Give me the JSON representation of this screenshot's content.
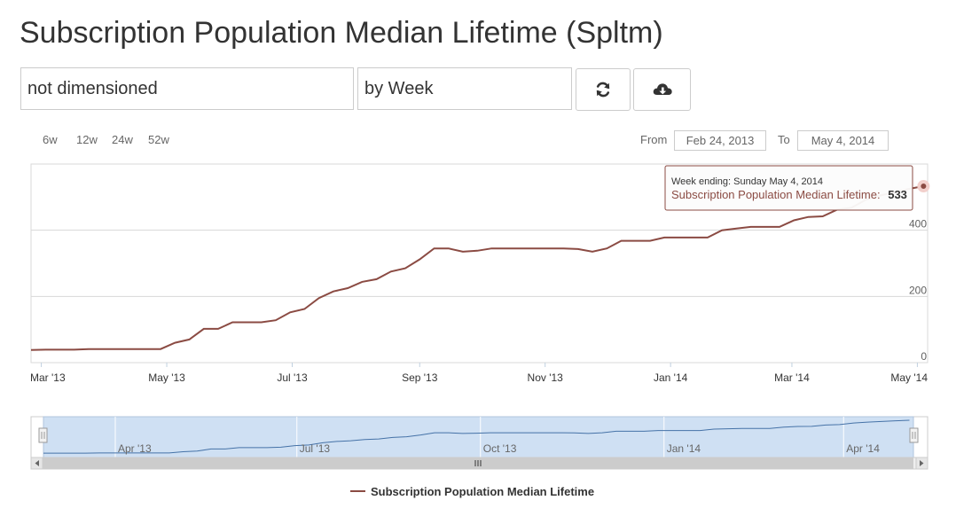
{
  "page": {
    "title": "Subscription Population Median Lifetime (Spltm)"
  },
  "controls": {
    "dimension_value": "not dimensioned",
    "period_value": "by Week",
    "refresh_icon": "refresh-icon",
    "download_icon": "cloud-download-icon"
  },
  "zoom": {
    "buttons": [
      "6w",
      "12w",
      "24w",
      "52w"
    ]
  },
  "range": {
    "from_label": "From",
    "from_value": "Feb 24, 2013",
    "to_label": "To",
    "to_value": "May 4, 2014"
  },
  "tooltip": {
    "header": "Week ending: Sunday May 4, 2014",
    "series_label": "Subscription Population Median Lifetime:",
    "value": "533"
  },
  "colors": {
    "series": "#8b4b43",
    "navigator_fill": "#cfe0f3",
    "navigator_line": "#4572a7"
  },
  "chart_data": {
    "type": "line",
    "title": "",
    "xlabel": "",
    "ylabel": "",
    "ylim": [
      0,
      600
    ],
    "y_ticks": [
      "0",
      "200",
      "400"
    ],
    "x_tick_labels": [
      "Mar '13",
      "May '13",
      "Jul '13",
      "Sep '13",
      "Nov '13",
      "Jan '14",
      "Mar '14",
      "May '14"
    ],
    "navigator_tick_labels": [
      "Apr '13",
      "Jul '13",
      "Oct '13",
      "Jan '14",
      "Apr '14"
    ],
    "legend": {
      "position": "bottom-center",
      "entries": [
        "Subscription Population Median Lifetime"
      ]
    },
    "grid": true,
    "series": [
      {
        "name": "Subscription Population Median Lifetime",
        "x": [
          "2013-02-24",
          "2013-03-03",
          "2013-03-10",
          "2013-03-17",
          "2013-03-24",
          "2013-03-31",
          "2013-04-07",
          "2013-04-14",
          "2013-04-21",
          "2013-04-28",
          "2013-05-05",
          "2013-05-12",
          "2013-05-19",
          "2013-05-26",
          "2013-06-02",
          "2013-06-09",
          "2013-06-16",
          "2013-06-23",
          "2013-06-30",
          "2013-07-07",
          "2013-07-14",
          "2013-07-21",
          "2013-07-28",
          "2013-08-04",
          "2013-08-11",
          "2013-08-18",
          "2013-08-25",
          "2013-09-01",
          "2013-09-08",
          "2013-09-15",
          "2013-09-22",
          "2013-09-29",
          "2013-10-06",
          "2013-10-13",
          "2013-10-20",
          "2013-10-27",
          "2013-11-03",
          "2013-11-10",
          "2013-11-17",
          "2013-11-24",
          "2013-12-01",
          "2013-12-08",
          "2013-12-15",
          "2013-12-22",
          "2013-12-29",
          "2014-01-05",
          "2014-01-12",
          "2014-01-19",
          "2014-01-26",
          "2014-02-02",
          "2014-02-09",
          "2014-02-16",
          "2014-02-23",
          "2014-03-02",
          "2014-03-09",
          "2014-03-16",
          "2014-03-23",
          "2014-03-30",
          "2014-04-06",
          "2014-04-13",
          "2014-04-20",
          "2014-04-27",
          "2014-05-04"
        ],
        "y": [
          38,
          39,
          39,
          39,
          41,
          41,
          41,
          41,
          41,
          41,
          60,
          70,
          102,
          102,
          122,
          122,
          122,
          128,
          152,
          162,
          195,
          215,
          225,
          244,
          252,
          275,
          285,
          312,
          345,
          345,
          335,
          338,
          345,
          345,
          345,
          345,
          345,
          345,
          343,
          335,
          345,
          368,
          368,
          368,
          378,
          378,
          378,
          378,
          400,
          405,
          410,
          410,
          410,
          430,
          440,
          442,
          462,
          468,
          492,
          505,
          515,
          525,
          533
        ]
      }
    ]
  },
  "legend_label": "Subscription Population Median Lifetime"
}
